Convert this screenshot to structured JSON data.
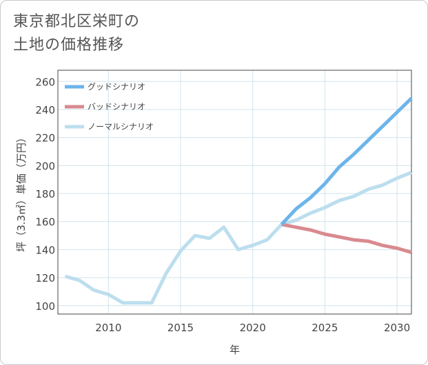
{
  "chart_data": {
    "type": "line",
    "title_line1": "東京都北区栄町の",
    "title_line2": "土地の価格推移",
    "xlabel": "年",
    "ylabel": "坪（3.3㎡）単価（万円）",
    "xlim": [
      2006.5,
      2031
    ],
    "ylim": [
      94,
      268
    ],
    "xticks": [
      2010,
      2015,
      2020,
      2025,
      2030
    ],
    "yticks": [
      100,
      120,
      140,
      160,
      180,
      200,
      220,
      240,
      260
    ],
    "legend_position": "top-left",
    "series": [
      {
        "name": "グッドシナリオ",
        "color": "#6cb5ea",
        "width": 5,
        "x": [
          2022,
          2023,
          2024,
          2025,
          2026,
          2027,
          2028,
          2029,
          2030,
          2031
        ],
        "values": [
          158,
          169,
          177,
          187,
          199,
          208,
          218,
          228,
          238,
          248
        ]
      },
      {
        "name": "バッドシナリオ",
        "color": "#d98a8f",
        "width": 5,
        "x": [
          2022,
          2023,
          2024,
          2025,
          2026,
          2027,
          2028,
          2029,
          2030,
          2031
        ],
        "values": [
          158,
          156,
          154,
          151,
          149,
          147,
          146,
          143,
          141,
          138
        ]
      },
      {
        "name": "ノーマルシナリオ",
        "color": "#bcdeee",
        "width": 5,
        "x": [
          2007,
          2008,
          2009,
          2010,
          2011,
          2012,
          2013,
          2014,
          2015,
          2016,
          2017,
          2018,
          2019,
          2020,
          2021,
          2022,
          2023,
          2024,
          2025,
          2026,
          2027,
          2028,
          2029,
          2030,
          2031
        ],
        "values": [
          121,
          118,
          111,
          108,
          102,
          102,
          102,
          123,
          139,
          150,
          148,
          156,
          140,
          143,
          147,
          158,
          161,
          166,
          170,
          175,
          178,
          183,
          186,
          191,
          195
        ]
      }
    ]
  }
}
